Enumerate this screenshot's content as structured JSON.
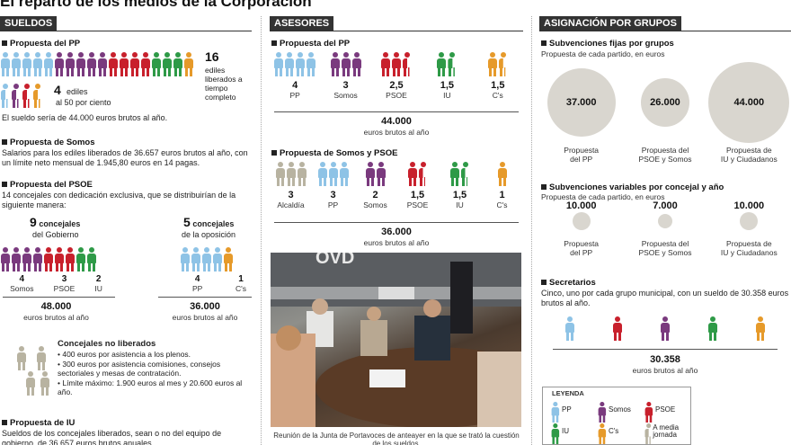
{
  "title": "El reparto de los medios de la Corporación",
  "colors": {
    "pp": "#8ec3e6",
    "somos": "#7a3a7e",
    "psoe": "#c8202c",
    "iu": "#2e9a47",
    "cs": "#e69a2a",
    "media": "#b8b3a1"
  },
  "sueldos": {
    "header": "SUELDOS",
    "pp": {
      "heading": "Propuesta del PP",
      "liberados_num": "16",
      "liberados_text": "ediles liberados a tiempo completo",
      "media_num": "4",
      "media_text1": "ediles",
      "media_text2": "al 50 por ciento",
      "sueldo_text": "El sueldo sería de 44.000 euros brutos al año."
    },
    "somos": {
      "heading": "Propuesta de Somos",
      "text": "Salarios para los ediles liberados de 36.657 euros brutos al año, con un límite neto mensual de 1.945,80 euros en 14 pagas."
    },
    "psoe": {
      "heading": "Propuesta del PSOE",
      "text": "14 concejales con dedicación exclusiva, que se distribuirían de la siguiente manera:",
      "gob_num": "9",
      "gob_text1": "concejales",
      "gob_text2": "del Gobierno",
      "opo_num": "5",
      "opo_text1": "concejales",
      "opo_text2": "de la oposición",
      "gob_counts": [
        {
          "n": "4",
          "label": "Somos"
        },
        {
          "n": "3",
          "label": "PSOE"
        },
        {
          "n": "2",
          "label": "IU"
        }
      ],
      "opo_counts": [
        {
          "n": "4",
          "label": "PP"
        },
        {
          "n": "1",
          "label": "C's"
        }
      ],
      "gob_amount": "48.000",
      "gob_amount_text": "euros brutos al año",
      "opo_amount": "36.000",
      "opo_amount_text": "euros brutos al año"
    },
    "no_liberados": {
      "heading": "Concejales no liberados",
      "items": [
        "• 400 euros por asistencia a los plenos.",
        "• 300 euros por asistencia comisiones, consejos sectoriales y mesas de contratación.",
        "• Límite máximo: 1.900 euros al mes y 20.600 euros al año."
      ]
    },
    "iu": {
      "heading": "Propuesta de IU",
      "text": "Sueldos de los concejales liberados, sean o no del equipo de gobierno, de 36.657 euros brutos anuales."
    }
  },
  "asesores": {
    "header": "ASESORES",
    "pp": {
      "heading": "Propuesta del PP",
      "counts": [
        {
          "n": "4",
          "label": "PP"
        },
        {
          "n": "3",
          "label": "Somos"
        },
        {
          "n": "2,5",
          "label": "PSOE"
        },
        {
          "n": "1,5",
          "label": "IU"
        },
        {
          "n": "1,5",
          "label": "C's"
        }
      ],
      "amount": "44.000",
      "amount_text": "euros brutos al año"
    },
    "somos_psoe": {
      "heading": "Propuesta de Somos y PSOE",
      "counts": [
        {
          "n": "3",
          "label": "Alcaldía"
        },
        {
          "n": "3",
          "label": "PP"
        },
        {
          "n": "2",
          "label": "Somos"
        },
        {
          "n": "1,5",
          "label": "PSOE"
        },
        {
          "n": "1,5",
          "label": "IU"
        },
        {
          "n": "1",
          "label": "C's"
        }
      ],
      "amount": "36.000",
      "amount_text": "euros brutos al año"
    },
    "photo_caption": "Reunión de la Junta de Portavoces de anteayer en la que se trató la cuestión de los sueldos."
  },
  "grupos": {
    "header": "ASIGNACIÓN POR GRUPOS",
    "fijas": {
      "heading": "Subvenciones fijas por grupos",
      "note": "Propuesta de cada partido, en euros",
      "items": [
        {
          "value": "37.000",
          "label1": "Propuesta",
          "label2": "del PP"
        },
        {
          "value": "26.000",
          "label1": "Propuesta del",
          "label2": "PSOE y Somos"
        },
        {
          "value": "44.000",
          "label1": "Propuesta de",
          "label2": "IU y Ciudadanos"
        }
      ]
    },
    "variables": {
      "heading": "Subvenciones variables por concejal y año",
      "note": "Propuesta de cada partido, en euros",
      "items": [
        {
          "value": "10.000",
          "label1": "Propuesta",
          "label2": "del PP"
        },
        {
          "value": "7.000",
          "label1": "Propuesta del",
          "label2": "PSOE y Somos"
        },
        {
          "value": "10.000",
          "label1": "Propuesta de",
          "label2": "IU y Ciudadanos"
        }
      ]
    },
    "secretarios": {
      "heading": "Secretarios",
      "text": "Cinco, uno por cada grupo municipal, con un sueldo de 30.358 euros brutos al año.",
      "amount": "30.358",
      "amount_text": "euros brutos al año"
    },
    "leyenda": {
      "title": "LEYENDA",
      "items": [
        {
          "key": "pp",
          "label": "PP"
        },
        {
          "key": "somos",
          "label": "Somos"
        },
        {
          "key": "psoe",
          "label": "PSOE"
        },
        {
          "key": "iu",
          "label": "IU"
        },
        {
          "key": "cs",
          "label": "C's"
        },
        {
          "key": "media",
          "label": "A media jornada"
        }
      ]
    }
  }
}
